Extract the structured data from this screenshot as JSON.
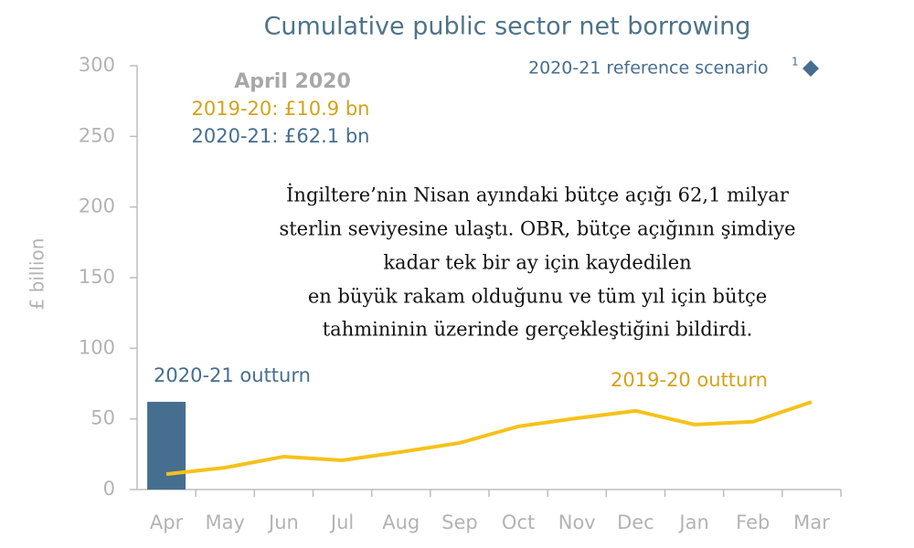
{
  "chart_data": {
    "type": "combo",
    "title": "Cumulative public sector net borrowing",
    "y_label": "£ billion",
    "categories": [
      "Apr",
      "May",
      "Jun",
      "Jul",
      "Aug",
      "Sep",
      "Oct",
      "Nov",
      "Dec",
      "Jan",
      "Feb",
      "Mar"
    ],
    "series": [
      {
        "name": "2020-21 outturn",
        "type": "bar",
        "color": "#466e8e",
        "values": [
          62.1,
          null,
          null,
          null,
          null,
          null,
          null,
          null,
          null,
          null,
          null,
          null
        ]
      },
      {
        "name": "2019-20 outturn",
        "type": "line",
        "color": "#f5c21b",
        "values": [
          10.9,
          15.5,
          23.3,
          20.7,
          26.6,
          33,
          44.7,
          50.5,
          55.7,
          46,
          48,
          62
        ]
      }
    ],
    "reference_legend": {
      "name": "2020-21 reference scenario",
      "superscript": "1",
      "color": "#466e8e"
    },
    "annotation": {
      "heading": "April 2020",
      "line1": "2019-20: £10.9 bn",
      "line2": "2020-21: £62.1 bn"
    },
    "ylim": [
      0,
      300
    ],
    "yticks": [
      0,
      50,
      100,
      150,
      200,
      250,
      300
    ],
    "grid": false,
    "overlay_text": [
      "İngiltere’nin Nisan ayındaki bütçe açığı 62,1 milyar",
      "sterlin seviyesine ulaştı. OBR, bütçe açığının şimdiye",
      "kadar tek bir ay için kaydedilen",
      "en büyük rakam olduğunu ve tüm yıl için bütçe",
      "tahmininin üzerinde gerçekleştiğini bildirdi."
    ]
  }
}
